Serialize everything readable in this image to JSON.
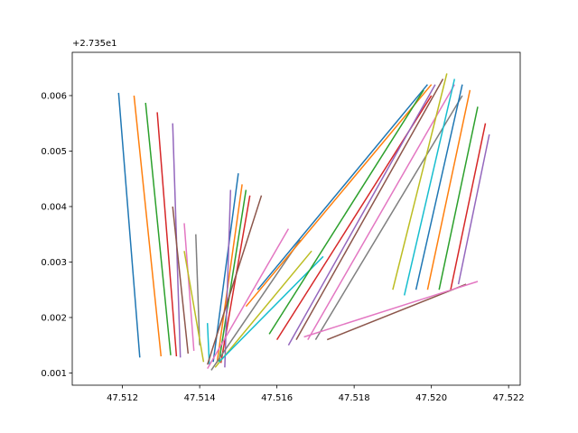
{
  "chart_data": {
    "type": "line",
    "title": "",
    "xlabel": "",
    "ylabel": "",
    "y_offset_text": "+2.735e1",
    "y_offset": 27.35,
    "xlim": [
      47.5107,
      47.5223
    ],
    "ylim": [
      0.00078,
      0.00678
    ],
    "x_ticks": [
      47.512,
      47.514,
      47.516,
      47.518,
      47.52,
      47.522
    ],
    "x_tick_labels": [
      "47.512",
      "47.514",
      "47.516",
      "47.518",
      "47.520",
      "47.522"
    ],
    "y_ticks": [
      0.001,
      0.002,
      0.003,
      0.004,
      0.005,
      0.006
    ],
    "y_tick_labels": [
      "0.001",
      "0.002",
      "0.003",
      "0.004",
      "0.005",
      "0.006"
    ],
    "grid": false,
    "legend": "none",
    "colors": [
      "#1f77b4",
      "#ff7f0e",
      "#2ca02c",
      "#d62728",
      "#9467bd",
      "#8c564b",
      "#e377c2",
      "#7f7f7f",
      "#bcbd22",
      "#17becf"
    ],
    "series": [
      {
        "x": [
          47.51245,
          47.5119
        ],
        "y": [
          0.00128,
          0.00605
        ]
      },
      {
        "x": [
          47.513,
          47.5123
        ],
        "y": [
          0.0013,
          0.006
        ]
      },
      {
        "x": [
          47.51325,
          47.5126
        ],
        "y": [
          0.00132,
          0.00587
        ]
      },
      {
        "x": [
          47.5134,
          47.5129
        ],
        "y": [
          0.0013,
          0.0057
        ]
      },
      {
        "x": [
          47.5135,
          47.5133
        ],
        "y": [
          0.00128,
          0.0055
        ]
      },
      {
        "x": [
          47.5137,
          47.5133
        ],
        "y": [
          0.00135,
          0.004
        ]
      },
      {
        "x": [
          47.51385,
          47.5136
        ],
        "y": [
          0.0014,
          0.0037
        ]
      },
      {
        "x": [
          47.514,
          47.5139
        ],
        "y": [
          0.0015,
          0.0035
        ]
      },
      {
        "x": [
          47.5141,
          47.5136
        ],
        "y": [
          0.0012,
          0.0032
        ]
      },
      {
        "x": [
          47.51425,
          47.5142
        ],
        "y": [
          0.00115,
          0.0019
        ]
      },
      {
        "x": [
          47.51435,
          47.515
        ],
        "y": [
          0.0012,
          0.0046
        ]
      },
      {
        "x": [
          47.51445,
          47.5151
        ],
        "y": [
          0.00118,
          0.0044
        ]
      },
      {
        "x": [
          47.5145,
          47.5152
        ],
        "y": [
          0.0012,
          0.0043
        ]
      },
      {
        "x": [
          47.51455,
          47.5153
        ],
        "y": [
          0.00118,
          0.0042
        ]
      },
      {
        "x": [
          47.51465,
          47.5148
        ],
        "y": [
          0.0011,
          0.0043
        ]
      },
      {
        "x": [
          47.5142,
          47.5156
        ],
        "y": [
          0.00115,
          0.0042
        ]
      },
      {
        "x": [
          47.5142,
          47.5163
        ],
        "y": [
          0.00108,
          0.0036
        ]
      },
      {
        "x": [
          47.5143,
          47.5166
        ],
        "y": [
          0.00105,
          0.0034
        ]
      },
      {
        "x": [
          47.5144,
          47.5169
        ],
        "y": [
          0.0011,
          0.0032
        ]
      },
      {
        "x": [
          47.5145,
          47.5172
        ],
        "y": [
          0.0012,
          0.0031
        ]
      },
      {
        "x": [
          47.5155,
          47.5199
        ],
        "y": [
          0.0025,
          0.0062
        ]
      },
      {
        "x": [
          47.5152,
          47.52
        ],
        "y": [
          0.0022,
          0.0062
        ]
      },
      {
        "x": [
          47.5158,
          47.5198
        ],
        "y": [
          0.0017,
          0.0061
        ]
      },
      {
        "x": [
          47.516,
          47.52
        ],
        "y": [
          0.0016,
          0.006
        ]
      },
      {
        "x": [
          47.5163,
          47.5201
        ],
        "y": [
          0.0015,
          0.0062
        ]
      },
      {
        "x": [
          47.5165,
          47.5203
        ],
        "y": [
          0.0016,
          0.0063
        ]
      },
      {
        "x": [
          47.5168,
          47.5206
        ],
        "y": [
          0.0016,
          0.0062
        ]
      },
      {
        "x": [
          47.517,
          47.5208
        ],
        "y": [
          0.0016,
          0.006
        ]
      },
      {
        "x": [
          47.519,
          47.5204
        ],
        "y": [
          0.0025,
          0.0064
        ]
      },
      {
        "x": [
          47.5193,
          47.5206
        ],
        "y": [
          0.0024,
          0.0063
        ]
      },
      {
        "x": [
          47.5196,
          47.5208
        ],
        "y": [
          0.0025,
          0.0062
        ]
      },
      {
        "x": [
          47.5199,
          47.521
        ],
        "y": [
          0.0025,
          0.0061
        ]
      },
      {
        "x": [
          47.5202,
          47.5212
        ],
        "y": [
          0.0025,
          0.0058
        ]
      },
      {
        "x": [
          47.5205,
          47.5214
        ],
        "y": [
          0.0025,
          0.0055
        ]
      },
      {
        "x": [
          47.5207,
          47.5215
        ],
        "y": [
          0.0026,
          0.0053
        ]
      },
      {
        "x": [
          47.5173,
          47.5209
        ],
        "y": [
          0.0016,
          0.0026
        ]
      },
      {
        "x": [
          47.5167,
          47.5212
        ],
        "y": [
          0.00165,
          0.00265
        ]
      }
    ]
  }
}
